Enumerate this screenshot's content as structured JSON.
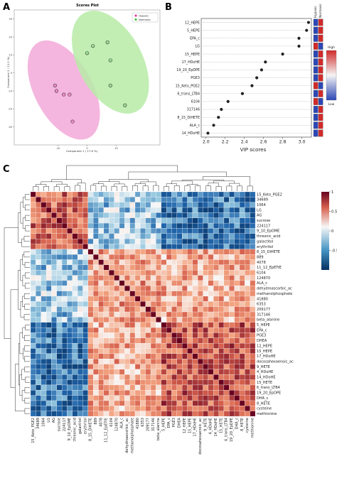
{
  "panel_labels": [
    "A",
    "B",
    "C"
  ],
  "colors": {
    "hypoxic": "#e0409b",
    "normoxic": "#4cbf4c",
    "hypoxic_fill": "#f2a9d8",
    "normoxic_fill": "#b7eba7",
    "dot": "#222222",
    "heat_low": "#2a4f9a",
    "heat_mid": "#f7f7f7",
    "heat_high": "#c1272d",
    "strip_blue": "#2d47b5",
    "strip_red": "#d12a2a"
  },
  "chart_data": [
    {
      "type": "scatter",
      "title": "Scores Plot",
      "xlabel": "Component 1 ( 17.6 %)",
      "ylabel": "Component 2 ( 11.1 %)",
      "xlim": [
        -25,
        25
      ],
      "ylim": [
        -40,
        35
      ],
      "xticks": [
        -10,
        0,
        10
      ],
      "yticks": [
        30,
        20,
        10,
        0,
        -10,
        -20,
        -30
      ],
      "legend": [
        "Hypoxic",
        "Normoxic"
      ],
      "legend_position": "top-right",
      "series": [
        {
          "name": "Hypoxic",
          "x": [
            -11,
            -10.5,
            -8,
            -6,
            -5
          ],
          "y": [
            -7,
            -10,
            -12,
            -12,
            -27
          ]
        },
        {
          "name": "Normoxic",
          "x": [
            0,
            2,
            7,
            8,
            8,
            13
          ],
          "y": [
            11,
            15,
            17,
            7,
            -7,
            -18
          ]
        }
      ],
      "ellipses": [
        {
          "series": "Hypoxic",
          "cx": -8,
          "cy": -9.5,
          "rx": 10,
          "ry": 30,
          "rotation": 28
        },
        {
          "series": "Normoxic",
          "cx": 8,
          "cy": 6,
          "rx": 11,
          "ry": 31,
          "rotation": 28
        }
      ]
    },
    {
      "type": "scatter",
      "subtype": "vip",
      "xlabel": "VIP scores",
      "xlim": [
        1.95,
        3.1
      ],
      "xticks": [
        2.0,
        2.2,
        2.4,
        2.6,
        2.8,
        3.0
      ],
      "strip_headers": [
        "Hypoxic",
        "Normoxic"
      ],
      "legend_title_high": "High",
      "legend_title_low": "Low",
      "categories": [
        "12_HEPE",
        "5_HEPE",
        "EPA_c",
        "LG",
        "15_HEPE",
        "17_HDoHE",
        "19_20_EpDPE",
        "PGE3",
        "15_Keto_PGE2",
        "6_trans_LTB4",
        "6104",
        "317146",
        "8_15_DiHETE",
        "ALA_c",
        "14_HDoHE"
      ],
      "values": [
        3.07,
        3.05,
        2.97,
        2.97,
        2.8,
        2.62,
        2.58,
        2.53,
        2.48,
        2.38,
        2.23,
        2.16,
        2.13,
        2.08,
        2.02
      ],
      "strip_states": [
        [
          "blue",
          "red"
        ],
        [
          "blue",
          "red"
        ],
        [
          "blue",
          "red"
        ],
        [
          "red",
          "blue"
        ],
        [
          "blue",
          "red"
        ],
        [
          "blue",
          "red"
        ],
        [
          "blue",
          "red"
        ],
        [
          "blue",
          "red"
        ],
        [
          "red",
          "blue"
        ],
        [
          "blue",
          "red"
        ],
        [
          "red",
          "blue"
        ],
        [
          "blue",
          "red"
        ],
        [
          "blue",
          "red"
        ],
        [
          "blue",
          "red"
        ],
        [
          "blue",
          "red"
        ]
      ]
    },
    {
      "type": "heatmap",
      "zlim": [
        -1,
        1
      ],
      "colorbar_ticks": [
        "1",
        "0.5",
        "0",
        "-0.5"
      ],
      "rows": [
        "15_Keto_PGE2",
        "34689",
        "1064",
        "LG",
        "AG",
        "sucrose",
        "224117",
        "9_10_EpOME",
        "threonic_acid",
        "galactitol",
        "erythritol",
        "8_15_DiHETE",
        "889",
        "4078",
        "11_12_EpETrE",
        "6104",
        "124870",
        "ALA_c",
        "dehydroascorbic_ac",
        "methanolphosphate",
        "41880",
        "6353",
        "209177",
        "317146",
        "beta_alanine",
        "5_HEPE",
        "EPA_c",
        "PGE3",
        "DHEA",
        "12_HEPE",
        "15_HEPE",
        "17_HDoHE",
        "docosahexaenoic_ac",
        "9_HETE",
        "4_HDoHE",
        "14_HDoHE",
        "15_HETE",
        "6_trans_LTB4",
        "19_20_EpDPE",
        "DHA_c",
        "8_HETE",
        "cysteine",
        "methionine"
      ],
      "cols": [
        "15_Keto_PGE2",
        "34689",
        "1064",
        "LG",
        "AG",
        "sucrose",
        "224117",
        "9_10_EpOME",
        "threonic_acid",
        "galactitol",
        "erythritol",
        "8_15_DiHETE",
        "889",
        "4078",
        "11_12_EpETrE",
        "6104",
        "124870",
        "ALA_c",
        "dehydroascorbic_ac",
        "methanolphosphate",
        "41880",
        "6353",
        "209177",
        "317146",
        "beta_alanine",
        "5_HEPE",
        "EPA_c",
        "PGE3",
        "DHEA",
        "12_HEPE",
        "15_HEPE",
        "17_HDoHE",
        "docosahexaenoic_ac",
        "9_HETE",
        "4_HDoHE",
        "14_HDoHE",
        "15_HETE",
        "6_trans_LTB4",
        "19_20_EpDPE",
        "DHA_c",
        "8_HETE",
        "cysteine",
        "methionine"
      ],
      "cluster_sizes": [
        11,
        14,
        18
      ],
      "within_cluster_corr": [
        0.55,
        0.35,
        0.6
      ],
      "between_cluster_corr": [
        [
          0,
          -0.25,
          -0.6
        ],
        [
          -0.25,
          0,
          0.3
        ],
        [
          -0.6,
          0.3,
          0
        ]
      ]
    }
  ]
}
